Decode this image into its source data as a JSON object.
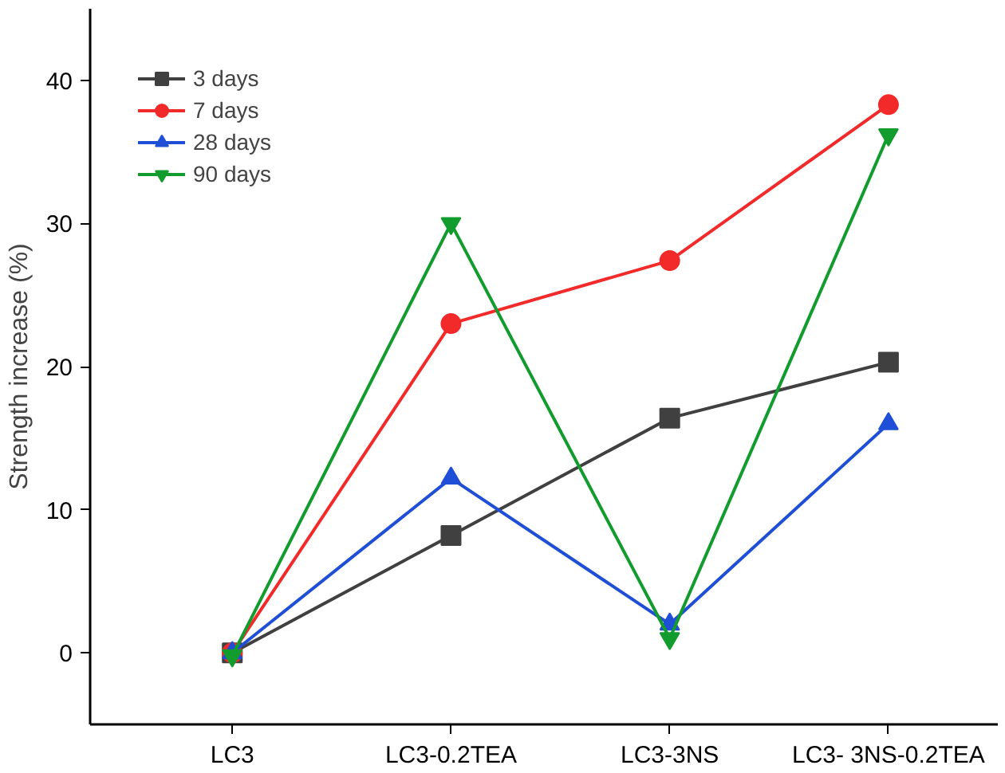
{
  "chart_data": {
    "type": "line",
    "ylabel": "Strength increase (%)",
    "categories": [
      "LC3",
      "LC3-0.2TEA",
      "LC3-3NS",
      "LC3- 3NS-0.2TEA"
    ],
    "ylim": [
      -5,
      45
    ],
    "yticks": [
      0,
      10,
      20,
      30,
      40
    ],
    "grid": false,
    "legend": "top left",
    "line_style": "solid",
    "series": [
      {
        "name": "3 days",
        "color": "#404040",
        "marker": "square",
        "values": [
          0,
          8.2,
          16.4,
          20.3
        ]
      },
      {
        "name": "7 days",
        "color": "#f22a2a",
        "marker": "circle",
        "values": [
          0,
          23.0,
          27.4,
          38.3
        ]
      },
      {
        "name": "28 days",
        "color": "#1f4fd6",
        "marker": "triangle",
        "values": [
          0,
          12.2,
          2.0,
          16.0
        ]
      },
      {
        "name": "90 days",
        "color": "#139c2e",
        "marker": "triangle",
        "values": [
          -0.2,
          30.0,
          1.0,
          36.2
        ]
      }
    ]
  }
}
